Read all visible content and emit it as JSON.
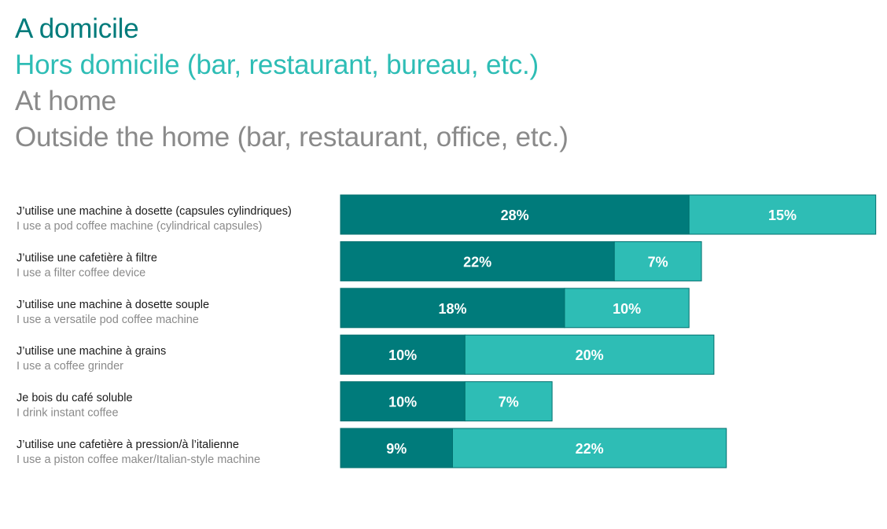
{
  "colors": {
    "home": "#007b7b",
    "outside": "#2ebdb5",
    "legend_home": "#007b7b",
    "legend_outside": "#2ebdb5",
    "legend_en": "#8a8a8a",
    "bar_border": "#00706f"
  },
  "legend": {
    "home_fr": "A domicile",
    "outside_fr": "Hors domicile (bar, restaurant, bureau, etc.)",
    "home_en": "At home",
    "outside_en": "Outside the home (bar, restaurant, office, etc.)"
  },
  "chart_data": {
    "type": "bar",
    "orientation": "horizontal",
    "stacked": true,
    "categories": [
      {
        "fr": "J’utilise une machine à dosette (capsules cylindriques)",
        "en": "I use a pod coffee machine (cylindrical capsules)"
      },
      {
        "fr": "J’utilise une cafetière à filtre",
        "en": "I use a filter coffee device"
      },
      {
        "fr": "J’utilise une machine à dosette souple",
        "en": "I use a versatile pod coffee machine"
      },
      {
        "fr": "J’utilise une machine à grains",
        "en": "I use a coffee grinder"
      },
      {
        "fr": "Je bois du café soluble",
        "en": "I drink instant coffee"
      },
      {
        "fr": "J’utilise une cafetière à pression/à l’italienne",
        "en": "I use a piston coffee maker/Italian-style machine"
      }
    ],
    "series": [
      {
        "name": "A domicile / At home",
        "values": [
          28,
          22,
          18,
          10,
          10,
          9
        ]
      },
      {
        "name": "Hors domicile (bar, restaurant, bureau, etc.) / Outside the home (bar, restaurant, office, etc.)",
        "values": [
          15,
          7,
          10,
          20,
          7,
          22
        ]
      }
    ],
    "value_labels": [
      [
        "28%",
        "22%",
        "18%",
        "10%",
        "10%",
        "9%"
      ],
      [
        "15%",
        "7%",
        "10%",
        "20%",
        "7%",
        "22%"
      ]
    ],
    "unit": "%",
    "grid": false,
    "legend_position": "top-left"
  }
}
